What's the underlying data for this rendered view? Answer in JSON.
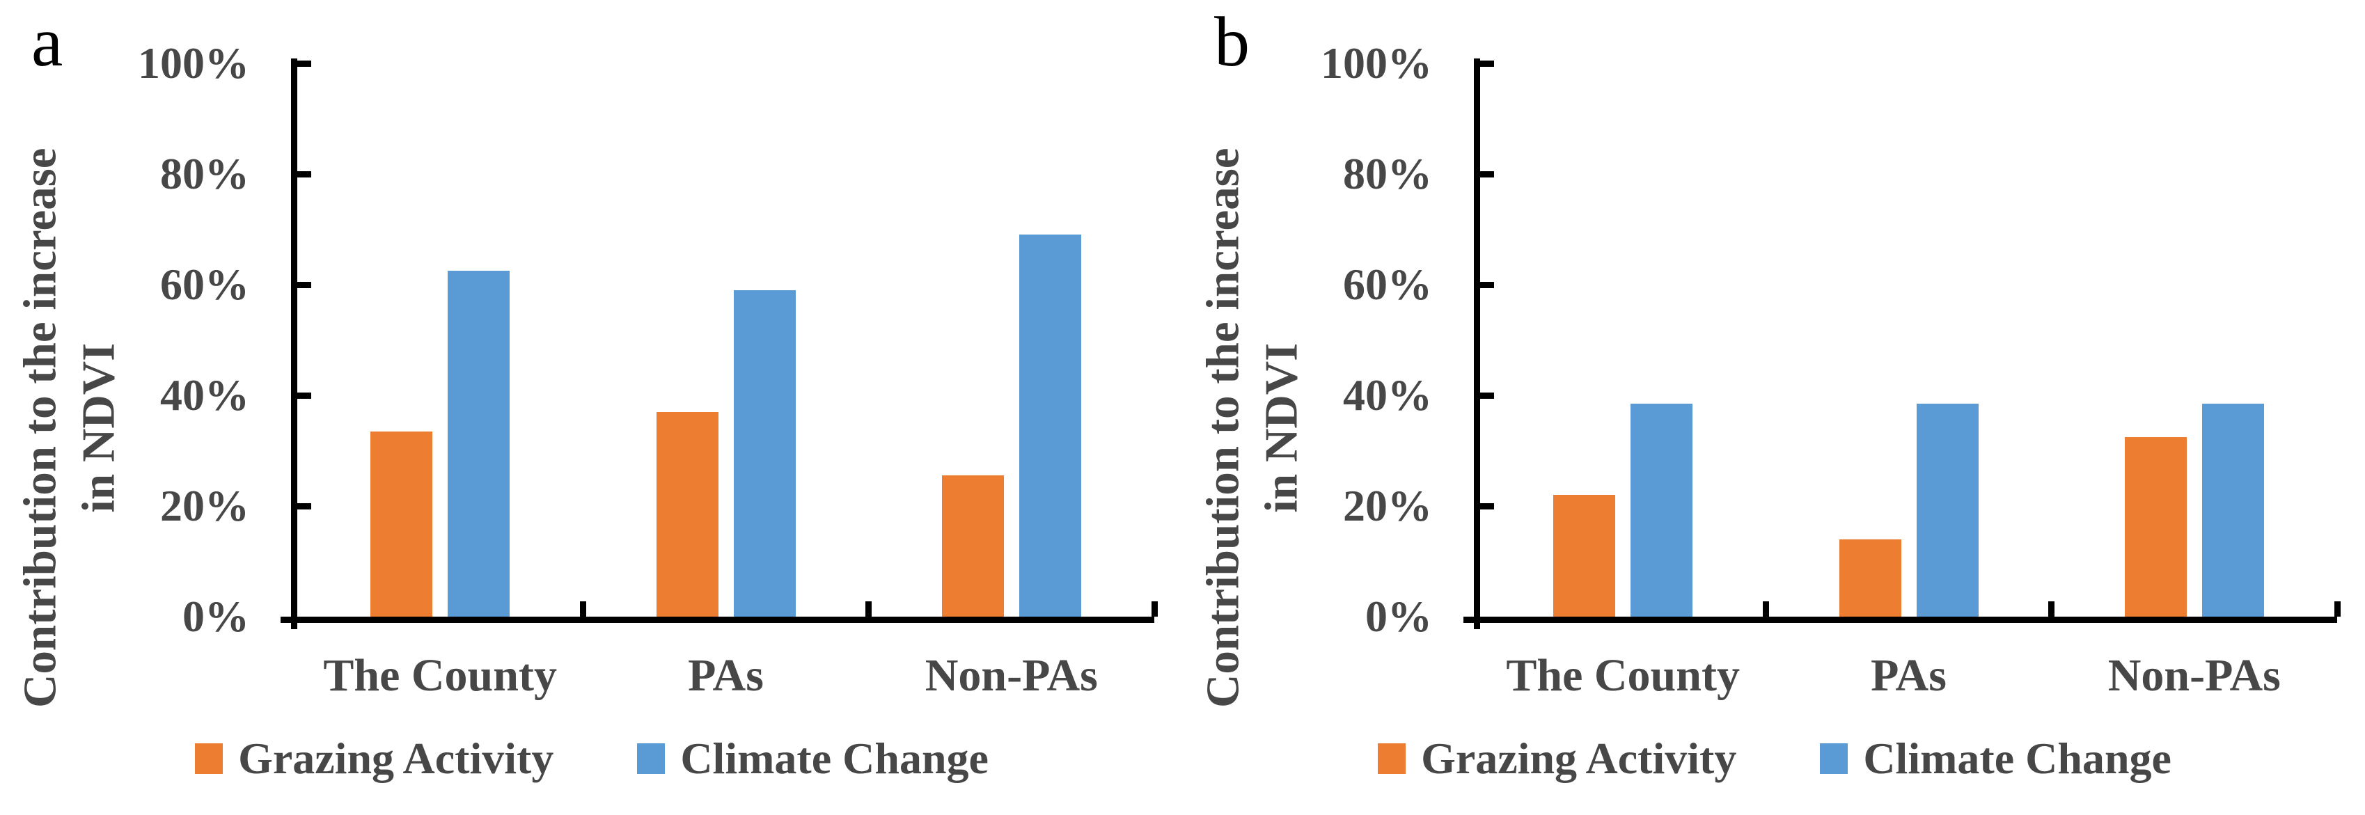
{
  "figure": {
    "background": "#FFFFFF",
    "axis_color": "#000000",
    "text_color": "#474747"
  },
  "chart_data": [
    {
      "type": "bar",
      "panel_label": "a",
      "title": "",
      "xlabel": "",
      "ylabel": "Contribution to the increase in NDVI",
      "ylabel_lines": [
        "Contribution to the increase",
        "in NDVI"
      ],
      "categories": [
        "The County",
        "PAs",
        "Non-PAs"
      ],
      "series": [
        {
          "name": "Grazing Activity",
          "color": "#ED7D31",
          "values": [
            33.5,
            37,
            25.5
          ]
        },
        {
          "name": "Climate Change",
          "color": "#5B9BD5",
          "values": [
            62.5,
            59,
            69
          ]
        }
      ],
      "ytick_labels": [
        "0%",
        "20%",
        "40%",
        "60%",
        "80%",
        "100%"
      ],
      "ylim": [
        0,
        100
      ],
      "grid": false,
      "legend_position": "bottom"
    },
    {
      "type": "bar",
      "panel_label": "b",
      "title": "",
      "xlabel": "",
      "ylabel": "Contribution to the increase in NDVI",
      "ylabel_lines": [
        "Contribution to the increase",
        "in NDVI"
      ],
      "categories": [
        "The County",
        "PAs",
        "Non-PAs"
      ],
      "series": [
        {
          "name": "Grazing Activity",
          "color": "#ED7D31",
          "values": [
            22,
            14,
            32.5
          ]
        },
        {
          "name": "Climate Change",
          "color": "#5B9BD5",
          "values": [
            38.5,
            38.5,
            38.5
          ]
        }
      ],
      "ytick_labels": [
        "0%",
        "20%",
        "40%",
        "60%",
        "80%",
        "100%"
      ],
      "ylim": [
        0,
        100
      ],
      "grid": false,
      "legend_position": "bottom"
    }
  ]
}
